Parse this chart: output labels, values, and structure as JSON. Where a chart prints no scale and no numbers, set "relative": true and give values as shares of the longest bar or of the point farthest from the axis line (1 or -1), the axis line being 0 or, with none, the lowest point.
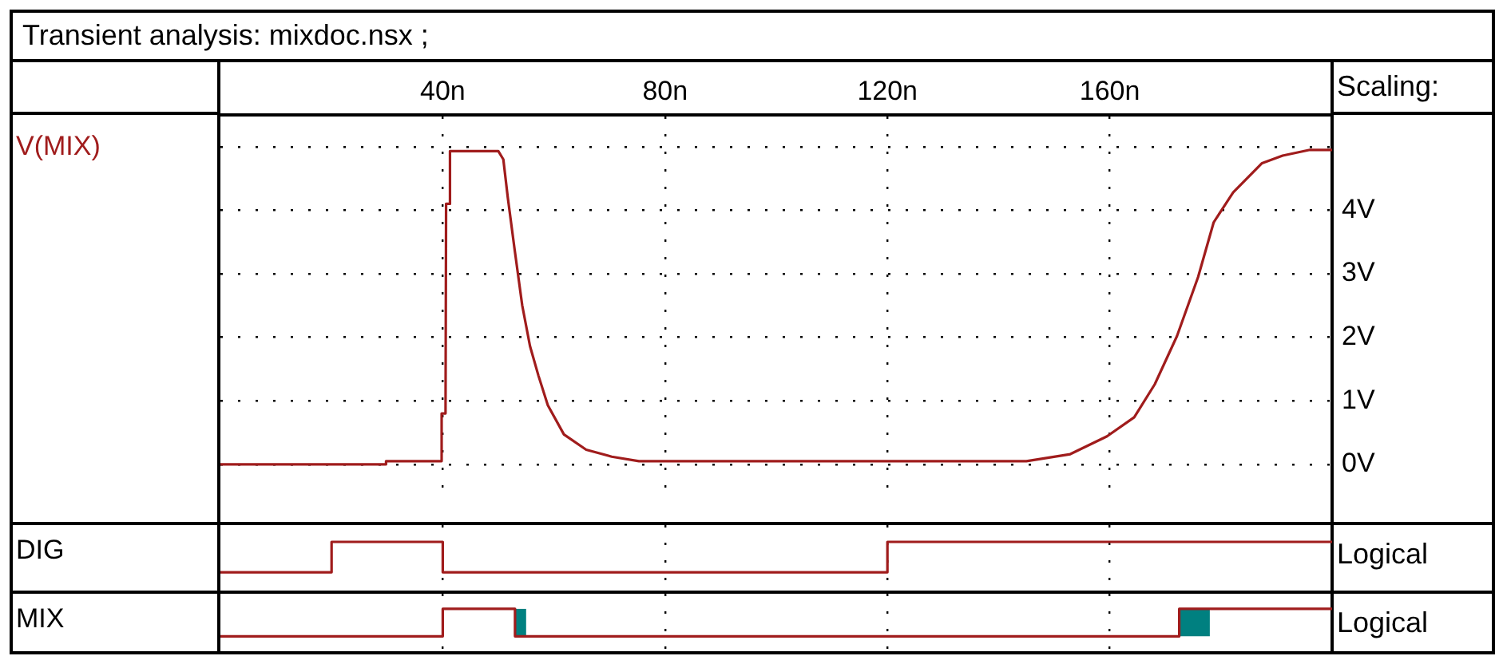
{
  "chart_data": [
    {
      "type": "line",
      "title": "Transient analysis: mixdoc.nsx ;",
      "ylabel": "Scaling:",
      "x": [
        0,
        29.7,
        29.8,
        39.7,
        39.8,
        40.5,
        40.6,
        41.2,
        41.3,
        50,
        50.9,
        51.7,
        52.9,
        54.3,
        55.7,
        57.2,
        58.9,
        61.8,
        65.8,
        70.4,
        75.3,
        145,
        152.9,
        159.5,
        164.4,
        168.1,
        172.1,
        175.9,
        178.7,
        182.2,
        187.4,
        191.1,
        196,
        200
      ],
      "series": [
        {
          "name": "V(MIX)",
          "color": "#a01c1c",
          "values": [
            0,
            0,
            0.05,
            0.05,
            0.8,
            0.8,
            4.1,
            4.1,
            4.93,
            4.93,
            4.8,
            4.2,
            3.4,
            2.5,
            1.86,
            1.4,
            0.93,
            0.47,
            0.23,
            0.12,
            0.05,
            0.05,
            0.16,
            0.44,
            0.74,
            1.26,
            2.02,
            2.95,
            3.81,
            4.28,
            4.74,
            4.86,
            4.95,
            4.95
          ]
        }
      ],
      "xlim": [
        0,
        200
      ],
      "xticks": [
        {
          "value": 40,
          "label": "40n"
        },
        {
          "value": 80,
          "label": "80n"
        },
        {
          "value": 120,
          "label": "120n"
        },
        {
          "value": 160,
          "label": "160n"
        }
      ],
      "ylim": [
        -0.5,
        5.5
      ],
      "yticks": [
        {
          "value": 0,
          "label": "0V"
        },
        {
          "value": 1,
          "label": "1V"
        },
        {
          "value": 2,
          "label": "2V"
        },
        {
          "value": 3,
          "label": "3V"
        },
        {
          "value": 4,
          "label": "4V"
        },
        {
          "value": 5,
          "label": null
        }
      ],
      "grid": true,
      "marker": "none"
    },
    {
      "type": "step",
      "ylabel": "Logical",
      "relative": true,
      "x": [
        0,
        20,
        40,
        120,
        200
      ],
      "series": [
        {
          "name": "DIG",
          "color": "#a01c1c",
          "values": [
            0,
            1,
            0,
            1,
            1
          ]
        }
      ],
      "xlim": [
        0,
        200
      ],
      "xticks": [
        40,
        80,
        120,
        160
      ],
      "tick_labels": false,
      "grid": "x",
      "marker": "none"
    },
    {
      "type": "step",
      "ylabel": "Logical",
      "relative": true,
      "x": [
        0,
        40,
        53,
        172.5,
        200
      ],
      "series": [
        {
          "name": "MIX",
          "color": "#a01c1c",
          "values": [
            0,
            1,
            0,
            1,
            1
          ]
        }
      ],
      "bands": [
        {
          "axis": "x",
          "from": 53,
          "to": 55,
          "color": "#008080"
        },
        {
          "axis": "x",
          "from": 172.5,
          "to": 178,
          "color": "#008080"
        }
      ],
      "xlim": [
        0,
        200
      ],
      "xticks": [
        40,
        80,
        120,
        160
      ],
      "tick_labels": false,
      "grid": "x",
      "marker": "none"
    }
  ]
}
